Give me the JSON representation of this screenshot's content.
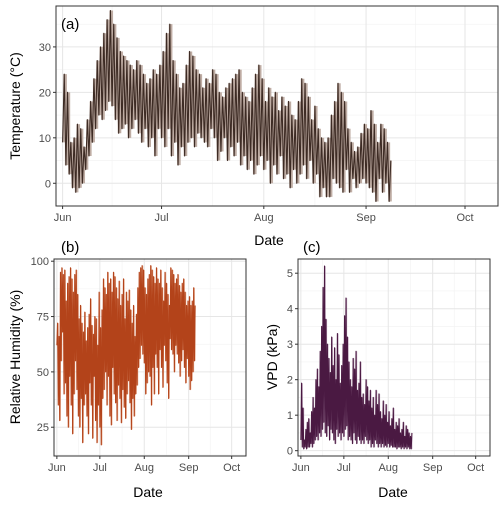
{
  "chart_data": [
    {
      "panel": "(a)",
      "type": "line",
      "title": "",
      "xlabel": "Date",
      "ylabel": "Temperature (°C)",
      "ylim": [
        -5,
        39
      ],
      "yticks": [
        0,
        10,
        20,
        30
      ],
      "xlim": [
        "2021-05-30",
        "2021-10-11"
      ],
      "xticks": [
        {
          "label": "Jun",
          "date": "2021-06-01"
        },
        {
          "label": "Jul",
          "date": "2021-07-01"
        },
        {
          "label": "Aug",
          "date": "2021-08-01"
        },
        {
          "label": "Sep",
          "date": "2021-09-01"
        },
        {
          "label": "Oct",
          "date": "2021-10-01"
        }
      ],
      "color": "#3d2b24",
      "band_color": "#b8a49a",
      "start_date": "2021-06-01",
      "series": [
        {
          "values": [
            9,
            24,
            4,
            20,
            2,
            9,
            -1,
            10,
            -2,
            13,
            -1,
            12,
            0,
            8,
            3,
            14,
            6,
            18,
            9,
            23,
            12,
            27,
            15,
            30,
            14,
            33,
            16,
            36,
            18,
            38,
            17,
            35,
            14,
            32,
            11,
            29,
            12,
            28,
            13,
            27,
            10,
            26,
            12,
            25,
            14,
            27,
            11,
            26,
            9,
            24,
            12,
            22,
            8,
            23,
            10,
            25,
            6,
            24,
            12,
            26,
            10,
            29,
            8,
            33,
            12,
            35,
            6,
            27,
            9,
            24,
            4,
            21,
            8,
            22,
            6,
            26,
            9,
            29,
            10,
            28,
            8,
            25,
            11,
            24,
            10,
            21,
            9,
            23,
            8,
            22,
            12,
            25,
            10,
            24,
            5,
            20,
            7,
            19,
            10,
            21,
            5,
            22,
            8,
            23,
            6,
            24,
            9,
            25,
            4,
            20,
            6,
            19,
            3,
            18,
            5,
            21,
            2,
            24,
            4,
            26,
            6,
            23,
            3,
            18,
            5,
            21,
            0,
            19,
            4,
            20,
            2,
            16,
            6,
            19,
            1,
            17,
            2,
            18,
            -1,
            15,
            3,
            14,
            0,
            18,
            2,
            23,
            4,
            22,
            1,
            19,
            5,
            14,
            0,
            17,
            2,
            12,
            -3,
            10,
            -1,
            9,
            -3,
            10,
            -3,
            15,
            1,
            18,
            0,
            22,
            -1,
            20,
            -2,
            18,
            3,
            12,
            -2,
            9,
            1,
            7,
            -1,
            8,
            0,
            11,
            1,
            13,
            0,
            12,
            -1,
            16,
            -2,
            13,
            -4,
            9,
            1,
            13,
            -2,
            12,
            0,
            9,
            -4,
            5
          ]
        }
      ]
    },
    {
      "panel": "(b)",
      "type": "line",
      "title": "",
      "xlabel": "Date",
      "ylabel": "Relative Humidity (%)",
      "ylim": [
        12,
        101
      ],
      "yticks": [
        25,
        50,
        75,
        100
      ],
      "xlim": [
        "2021-05-30",
        "2021-10-11"
      ],
      "xticks": [
        {
          "label": "Jun",
          "date": "2021-06-01"
        },
        {
          "label": "Jul",
          "date": "2021-07-01"
        },
        {
          "label": "Aug",
          "date": "2021-08-01"
        },
        {
          "label": "Sep",
          "date": "2021-09-01"
        },
        {
          "label": "Oct",
          "date": "2021-10-01"
        }
      ],
      "color": "#b3431a",
      "band_color": "#e8a98a",
      "start_date": "2021-06-01",
      "series": [
        {
          "values": [
            62,
            72,
            35,
            66,
            28,
            95,
            55,
            97,
            68,
            94,
            40,
            96,
            45,
            82,
            30,
            90,
            25,
            93,
            48,
            97,
            35,
            92,
            22,
            86,
            40,
            94,
            55,
            96,
            42,
            85,
            30,
            74,
            25,
            80,
            38,
            72,
            18,
            68,
            35,
            77,
            40,
            64,
            30,
            70,
            22,
            76,
            45,
            83,
            35,
            71,
            20,
            67,
            48,
            75,
            28,
            74,
            18,
            62,
            35,
            86,
            25,
            70,
            17,
            78,
            38,
            92,
            42,
            88,
            50,
            85,
            35,
            95,
            48,
            90,
            30,
            92,
            26,
            86,
            52,
            95,
            40,
            93,
            36,
            88,
            28,
            83,
            44,
            91,
            38,
            80,
            27,
            85,
            42,
            92,
            34,
            74,
            29,
            86,
            40,
            82,
            46,
            87,
            36,
            78,
            24,
            72,
            38,
            80,
            30,
            66,
            40,
            76,
            44,
            88,
            52,
            95,
            56,
            97,
            62,
            98,
            58,
            96,
            54,
            88,
            40,
            85,
            45,
            92,
            50,
            94,
            48,
            98,
            35,
            96,
            52,
            93,
            40,
            90,
            58,
            97,
            52,
            92,
            40,
            90,
            60,
            96,
            52,
            88,
            43,
            82,
            62,
            95,
            55,
            90,
            45,
            85,
            38,
            80,
            65,
            97,
            60,
            96,
            58,
            94,
            50,
            90,
            62,
            92,
            58,
            94,
            54,
            89,
            48,
            86,
            55,
            90,
            60,
            92,
            52,
            86,
            45,
            80,
            56,
            82,
            48,
            84,
            42,
            80,
            46,
            82,
            50,
            88,
            55,
            80
          ]
        }
      ]
    },
    {
      "panel": "(c)",
      "type": "line",
      "title": "",
      "xlabel": "Date",
      "ylabel": "VPD (kPa)",
      "ylim": [
        -0.15,
        5.4
      ],
      "yticks": [
        0,
        1,
        2,
        3,
        4,
        5
      ],
      "xlim": [
        "2021-05-30",
        "2021-10-11"
      ],
      "xticks": [
        {
          "label": "Jun",
          "date": "2021-06-01"
        },
        {
          "label": "Jul",
          "date": "2021-07-01"
        },
        {
          "label": "Aug",
          "date": "2021-08-01"
        },
        {
          "label": "Sep",
          "date": "2021-09-01"
        },
        {
          "label": "Oct",
          "date": "2021-10-01"
        }
      ],
      "color": "#4a1942",
      "band_color": "#b79ab4",
      "start_date": "2021-06-01",
      "series": [
        {
          "values": [
            0.3,
            1.9,
            0.1,
            1.2,
            0.05,
            0.3,
            0.1,
            0.6,
            0.05,
            0.8,
            0.1,
            0.9,
            0.1,
            0.5,
            0.2,
            1.1,
            0.1,
            1.5,
            0.2,
            1.2,
            0.3,
            2.0,
            0.4,
            2.3,
            0.3,
            1.8,
            0.5,
            2.8,
            0.4,
            3.5,
            0.6,
            4.6,
            0.8,
            5.2,
            0.5,
            3.7,
            0.4,
            3.0,
            0.7,
            2.6,
            0.3,
            2.2,
            0.6,
            3.2,
            0.5,
            2.4,
            0.3,
            2.9,
            0.2,
            2.0,
            0.6,
            3.3,
            0.4,
            2.7,
            0.5,
            1.9,
            0.3,
            2.4,
            0.5,
            3.0,
            0.4,
            3.8,
            0.6,
            4.3,
            0.7,
            3.2,
            0.3,
            2.5,
            0.4,
            2.0,
            0.3,
            1.8,
            0.2,
            2.6,
            0.5,
            2.3,
            0.3,
            2.8,
            0.2,
            1.7,
            0.4,
            1.9,
            0.3,
            2.5,
            0.2,
            1.5,
            0.3,
            1.6,
            0.2,
            1.3,
            0.4,
            2.0,
            0.3,
            1.8,
            0.2,
            1.4,
            0.3,
            1.7,
            0.1,
            1.2,
            0.2,
            1.5,
            0.1,
            1.0,
            0.3,
            1.7,
            0.2,
            1.3,
            0.1,
            1.6,
            0.2,
            1.1,
            0.1,
            0.9,
            0.2,
            1.4,
            0.1,
            1.0,
            0.15,
            1.3,
            0.1,
            0.8,
            0.2,
            1.1,
            0.1,
            0.7,
            0.15,
            0.9,
            0.1,
            1.2,
            0.1,
            0.6,
            0.1,
            0.8,
            0.05,
            0.7,
            0.1,
            0.9,
            0.1,
            0.5,
            0.05,
            0.6,
            0.1,
            0.8,
            0.05,
            0.4,
            0.1,
            0.7,
            0.05,
            0.6,
            0.1,
            0.5,
            0.05,
            0.4,
            0.05,
            0.5
          ]
        }
      ]
    }
  ]
}
